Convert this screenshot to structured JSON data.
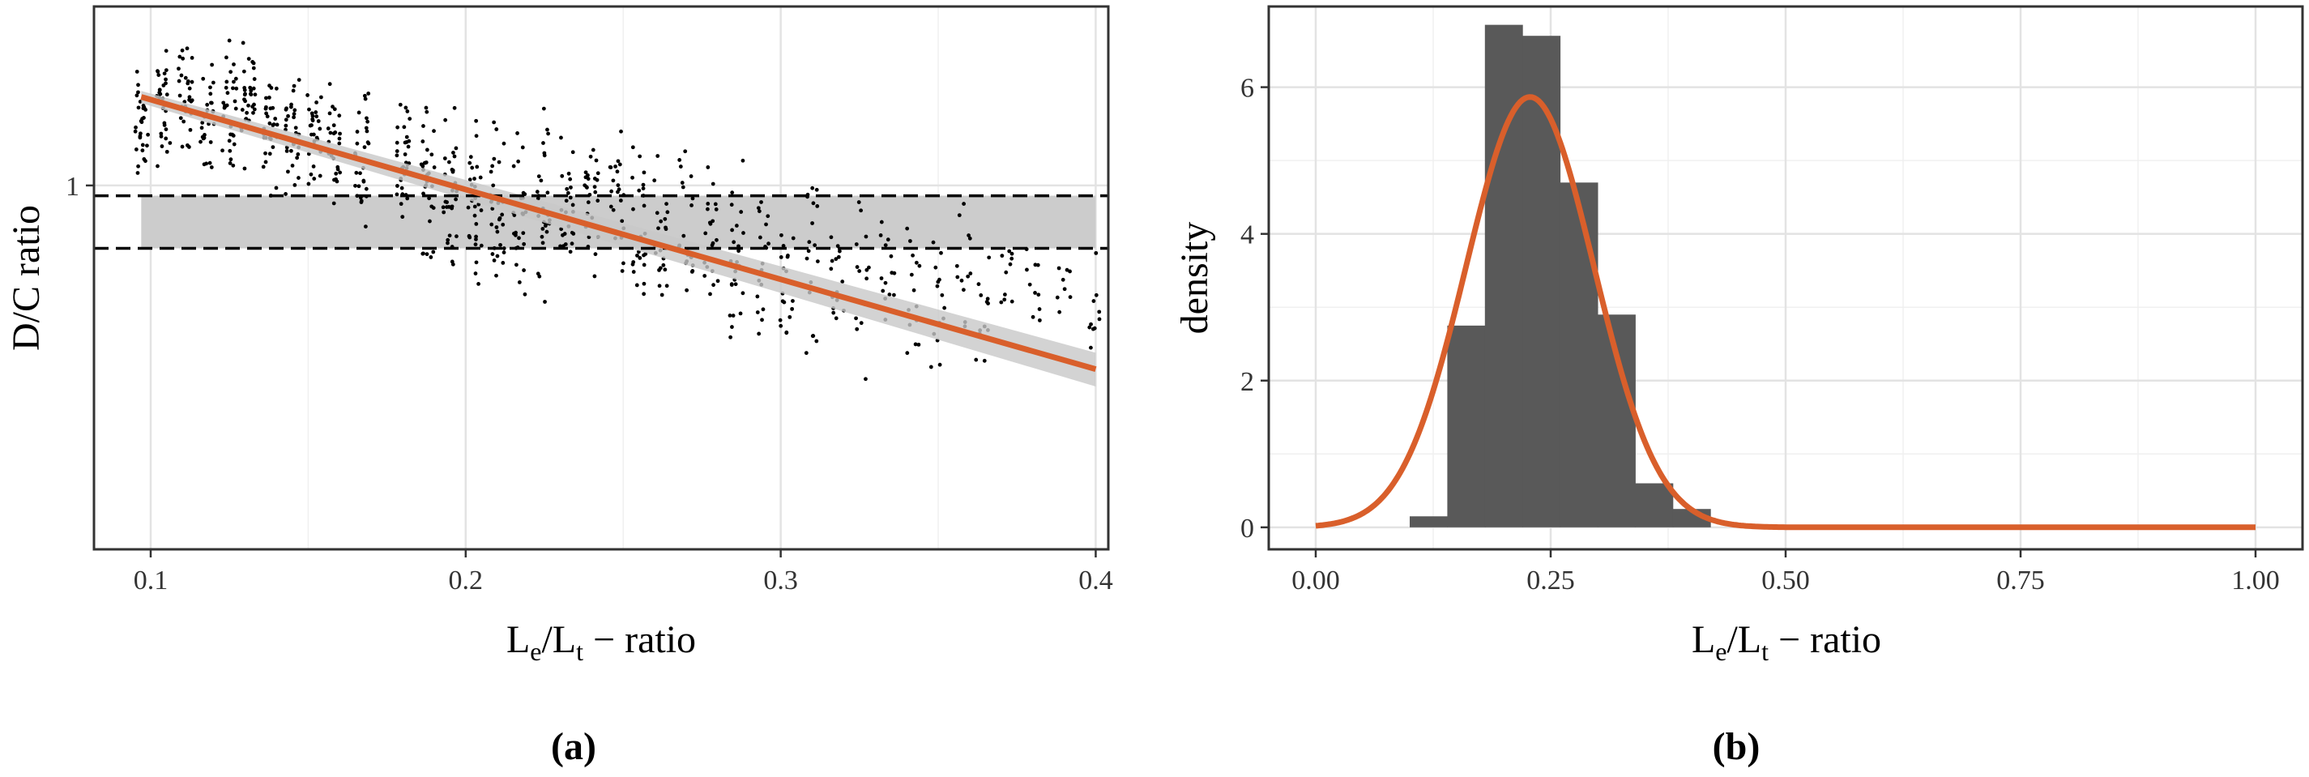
{
  "chart_data": [
    {
      "panel": "(a)",
      "type": "scatter",
      "title": "",
      "xlabel": "L_e/L_t − ratio",
      "ylabel": "D/C ratio",
      "x_ticks": [
        0.1,
        0.2,
        0.3,
        0.4
      ],
      "x_tick_labels": [
        "0.1",
        "0.2",
        "0.3",
        "0.4"
      ],
      "y_ticks": [
        1
      ],
      "y_tick_labels": [
        "1"
      ],
      "xlim": [
        0.082,
        0.404
      ],
      "ylim": [
        0.34,
        1.7
      ],
      "y_scale": "log",
      "grid": true,
      "point_clusters": [
        {
          "x": 0.097,
          "y_min": 0.9,
          "y_max": 1.53,
          "n": 28
        },
        {
          "x": 0.104,
          "y_min": 1.0,
          "y_max": 1.58,
          "n": 30
        },
        {
          "x": 0.111,
          "y_min": 1.05,
          "y_max": 1.6,
          "n": 32
        },
        {
          "x": 0.118,
          "y_min": 0.98,
          "y_max": 1.56,
          "n": 30
        },
        {
          "x": 0.125,
          "y_min": 0.95,
          "y_max": 1.62,
          "n": 32
        },
        {
          "x": 0.131,
          "y_min": 1.0,
          "y_max": 1.66,
          "n": 32
        },
        {
          "x": 0.138,
          "y_min": 0.93,
          "y_max": 1.58,
          "n": 30
        },
        {
          "x": 0.145,
          "y_min": 0.9,
          "y_max": 1.5,
          "n": 30
        },
        {
          "x": 0.152,
          "y_min": 0.92,
          "y_max": 1.45,
          "n": 28
        },
        {
          "x": 0.158,
          "y_min": 0.92,
          "y_max": 1.42,
          "n": 28
        },
        {
          "x": 0.167,
          "y_min": 0.84,
          "y_max": 1.45,
          "n": 30
        },
        {
          "x": 0.18,
          "y_min": 0.82,
          "y_max": 1.4,
          "n": 34
        },
        {
          "x": 0.188,
          "y_min": 0.75,
          "y_max": 1.4,
          "n": 34
        },
        {
          "x": 0.195,
          "y_min": 0.72,
          "y_max": 1.35,
          "n": 32
        },
        {
          "x": 0.203,
          "y_min": 0.68,
          "y_max": 1.3,
          "n": 30
        },
        {
          "x": 0.21,
          "y_min": 0.65,
          "y_max": 1.32,
          "n": 30
        },
        {
          "x": 0.217,
          "y_min": 0.66,
          "y_max": 1.28,
          "n": 28
        },
        {
          "x": 0.225,
          "y_min": 0.64,
          "y_max": 1.32,
          "n": 28
        },
        {
          "x": 0.232,
          "y_min": 0.7,
          "y_max": 1.28,
          "n": 26
        },
        {
          "x": 0.24,
          "y_min": 0.68,
          "y_max": 1.25,
          "n": 26
        },
        {
          "x": 0.248,
          "y_min": 0.66,
          "y_max": 1.27,
          "n": 24
        },
        {
          "x": 0.255,
          "y_min": 0.62,
          "y_max": 1.22,
          "n": 24
        },
        {
          "x": 0.262,
          "y_min": 0.58,
          "y_max": 1.2,
          "n": 22
        },
        {
          "x": 0.27,
          "y_min": 0.57,
          "y_max": 1.27,
          "n": 22
        },
        {
          "x": 0.278,
          "y_min": 0.6,
          "y_max": 1.18,
          "n": 20
        },
        {
          "x": 0.286,
          "y_min": 0.5,
          "y_max": 1.25,
          "n": 24
        },
        {
          "x": 0.294,
          "y_min": 0.56,
          "y_max": 1.12,
          "n": 18
        },
        {
          "x": 0.302,
          "y_min": 0.52,
          "y_max": 1.1,
          "n": 18
        },
        {
          "x": 0.31,
          "y_min": 0.52,
          "y_max": 1.2,
          "n": 18
        },
        {
          "x": 0.318,
          "y_min": 0.57,
          "y_max": 1.05,
          "n": 16
        },
        {
          "x": 0.326,
          "y_min": 0.5,
          "y_max": 1.06,
          "n": 16
        },
        {
          "x": 0.334,
          "y_min": 0.57,
          "y_max": 1.0,
          "n": 14
        },
        {
          "x": 0.342,
          "y_min": 0.52,
          "y_max": 1.02,
          "n": 14
        },
        {
          "x": 0.35,
          "y_min": 0.5,
          "y_max": 1.03,
          "n": 14
        },
        {
          "x": 0.358,
          "y_min": 0.58,
          "y_max": 0.98,
          "n": 12
        },
        {
          "x": 0.364,
          "y_min": 0.48,
          "y_max": 1.0,
          "n": 12
        },
        {
          "x": 0.372,
          "y_min": 0.6,
          "y_max": 0.98,
          "n": 10
        },
        {
          "x": 0.38,
          "y_min": 0.55,
          "y_max": 1.0,
          "n": 10
        },
        {
          "x": 0.39,
          "y_min": 0.58,
          "y_max": 0.93,
          "n": 8
        },
        {
          "x": 0.4,
          "y_min": 0.52,
          "y_max": 0.85,
          "n": 10
        }
      ],
      "fit_line": {
        "x": [
          0.097,
          0.4
        ],
        "y": [
          1.3,
          0.58
        ],
        "color": "#d95f2b"
      },
      "confidence_band_color": "#c8c8c8",
      "reference_band": {
        "y_min": 0.83,
        "y_max": 0.97,
        "xlim": [
          0.097,
          0.4
        ],
        "color": "#cccccc"
      },
      "dashed_lines_y": [
        0.97,
        0.83
      ]
    },
    {
      "panel": "(b)",
      "type": "bar",
      "title": "",
      "xlabel": "L_e/L_t − ratio",
      "ylabel": "density",
      "x_ticks": [
        0.0,
        0.25,
        0.5,
        0.75,
        1.0
      ],
      "x_tick_labels": [
        "0.00",
        "0.25",
        "0.50",
        "0.75",
        "1.00"
      ],
      "y_ticks": [
        0,
        2,
        4,
        6
      ],
      "y_tick_labels": [
        "0",
        "2",
        "4",
        "6"
      ],
      "xlim": [
        -0.05,
        1.05
      ],
      "ylim": [
        -0.3,
        7.1
      ],
      "grid": true,
      "histogram": {
        "bin_edges": [
          0.1,
          0.14,
          0.18,
          0.22,
          0.26,
          0.3,
          0.34,
          0.38,
          0.42
        ],
        "densities": [
          0.15,
          2.75,
          6.85,
          6.7,
          4.7,
          2.9,
          0.6,
          0.25
        ],
        "color": "#595959"
      },
      "density_curve": {
        "distribution": "normal",
        "mean": 0.228,
        "sd": 0.068,
        "x_range": [
          0,
          1
        ],
        "color": "#d95f2b"
      }
    }
  ],
  "panel_labels": [
    "(a)",
    "(b)"
  ]
}
